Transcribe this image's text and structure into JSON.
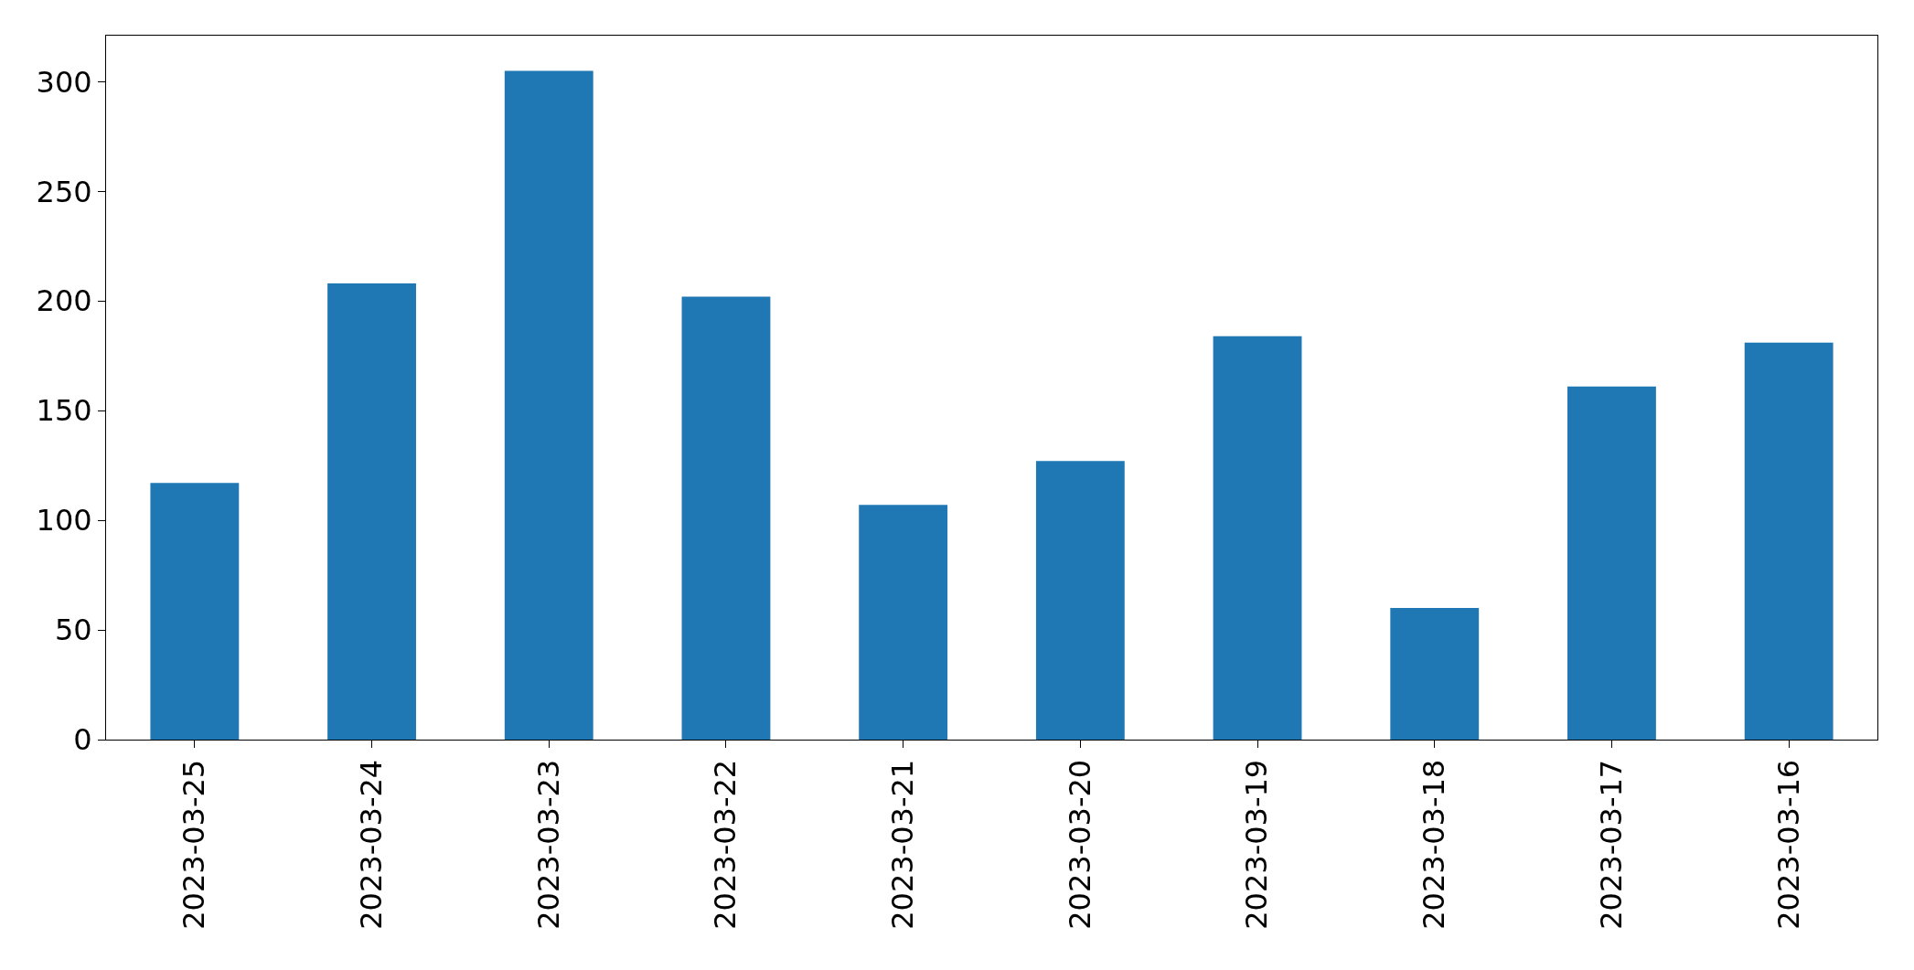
{
  "chart_data": {
    "type": "bar",
    "categories": [
      "2023-03-25",
      "2023-03-24",
      "2023-03-23",
      "2023-03-22",
      "2023-03-21",
      "2023-03-20",
      "2023-03-19",
      "2023-03-18",
      "2023-03-17",
      "2023-03-16"
    ],
    "values": [
      117,
      208,
      305,
      202,
      107,
      127,
      184,
      60,
      161,
      181
    ],
    "color": "#1f77b4",
    "ylim": [
      0,
      321
    ],
    "yticks": [
      0,
      50,
      100,
      150,
      200,
      250,
      300
    ]
  }
}
